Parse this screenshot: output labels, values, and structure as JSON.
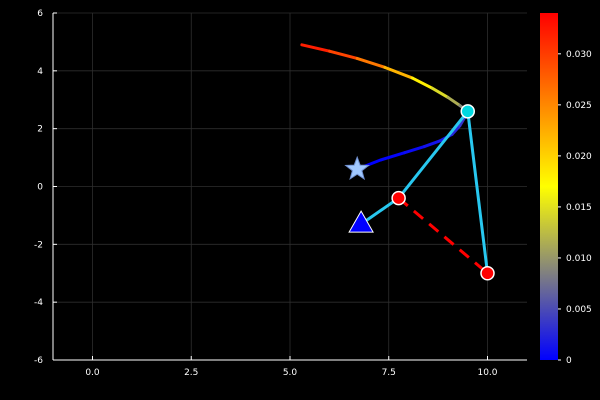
{
  "chart_data": {
    "type": "line",
    "background": "#000000",
    "xlim": [
      -1.0,
      11.0
    ],
    "ylim": [
      -6,
      6
    ],
    "x_ticks": [
      0.0,
      2.5,
      5.0,
      7.5,
      10.0
    ],
    "x_tick_labels": [
      "0.0",
      "2.5",
      "5.0",
      "7.5",
      "10.0"
    ],
    "y_ticks": [
      -6,
      -4,
      -2,
      0,
      2,
      4,
      6
    ],
    "y_tick_labels": [
      "-6",
      "-4",
      "-2",
      "0",
      "2",
      "4",
      "6"
    ],
    "grid": true,
    "colorbar": {
      "range": [
        0,
        0.034
      ],
      "ticks": [
        0,
        0.005,
        0.01,
        0.015,
        0.02,
        0.025,
        0.03
      ],
      "tick_labels": [
        "0",
        "0.005",
        "0.010",
        "0.015",
        "0.020",
        "0.025",
        "0.030"
      ],
      "colormap": [
        "#0000ff",
        "#808080",
        "#ffff00",
        "#ff8000",
        "#ff0000"
      ]
    },
    "series": [
      {
        "name": "trajectory-upper",
        "style": "gradient-line",
        "x": [
          5.3,
          6.0,
          6.7,
          7.4,
          8.1,
          8.6,
          9.0,
          9.3,
          9.5
        ],
        "y": [
          4.9,
          4.68,
          4.43,
          4.12,
          3.75,
          3.4,
          3.08,
          2.8,
          2.6
        ],
        "c": [
          0.033,
          0.031,
          0.028,
          0.024,
          0.02,
          0.016,
          0.013,
          0.01,
          0.008
        ]
      },
      {
        "name": "trajectory-lower",
        "style": "gradient-line",
        "x": [
          6.7,
          7.3,
          7.9,
          8.4,
          8.8,
          9.1,
          9.3,
          9.45
        ],
        "y": [
          0.6,
          0.92,
          1.17,
          1.38,
          1.58,
          1.8,
          2.1,
          2.45
        ],
        "c": [
          0.0,
          0.0,
          0.0005,
          0.001,
          0.0015,
          0.002,
          0.003,
          0.004
        ]
      },
      {
        "name": "linkage",
        "style": "solid",
        "color": "#28c8f0",
        "x": [
          6.8,
          7.75,
          9.5,
          10.0
        ],
        "y": [
          -1.3,
          -0.4,
          2.6,
          -3.0
        ]
      },
      {
        "name": "dashed-link",
        "style": "dashed",
        "color": "#ff0000",
        "x": [
          7.75,
          10.0
        ],
        "y": [
          -0.4,
          -3.0
        ]
      }
    ],
    "markers": [
      {
        "name": "joint-marker",
        "shape": "circle",
        "x": 9.5,
        "y": 2.6,
        "fill": "#00d8e0",
        "stroke": "#ffffff"
      },
      {
        "name": "joint-marker",
        "shape": "circle",
        "x": 7.75,
        "y": -0.4,
        "fill": "#ff0000",
        "stroke": "#ffffff"
      },
      {
        "name": "joint-marker",
        "shape": "circle",
        "x": 10.0,
        "y": -3.0,
        "fill": "#ff0000",
        "stroke": "#ffffff"
      },
      {
        "name": "star-marker",
        "shape": "star",
        "x": 6.7,
        "y": 0.6,
        "fill": "#a0c8ff",
        "stroke": "#7090d0"
      },
      {
        "name": "triangle-marker",
        "shape": "triangle",
        "x": 6.8,
        "y": -1.3,
        "fill": "#0000ff",
        "stroke": "#ffffff"
      }
    ]
  }
}
